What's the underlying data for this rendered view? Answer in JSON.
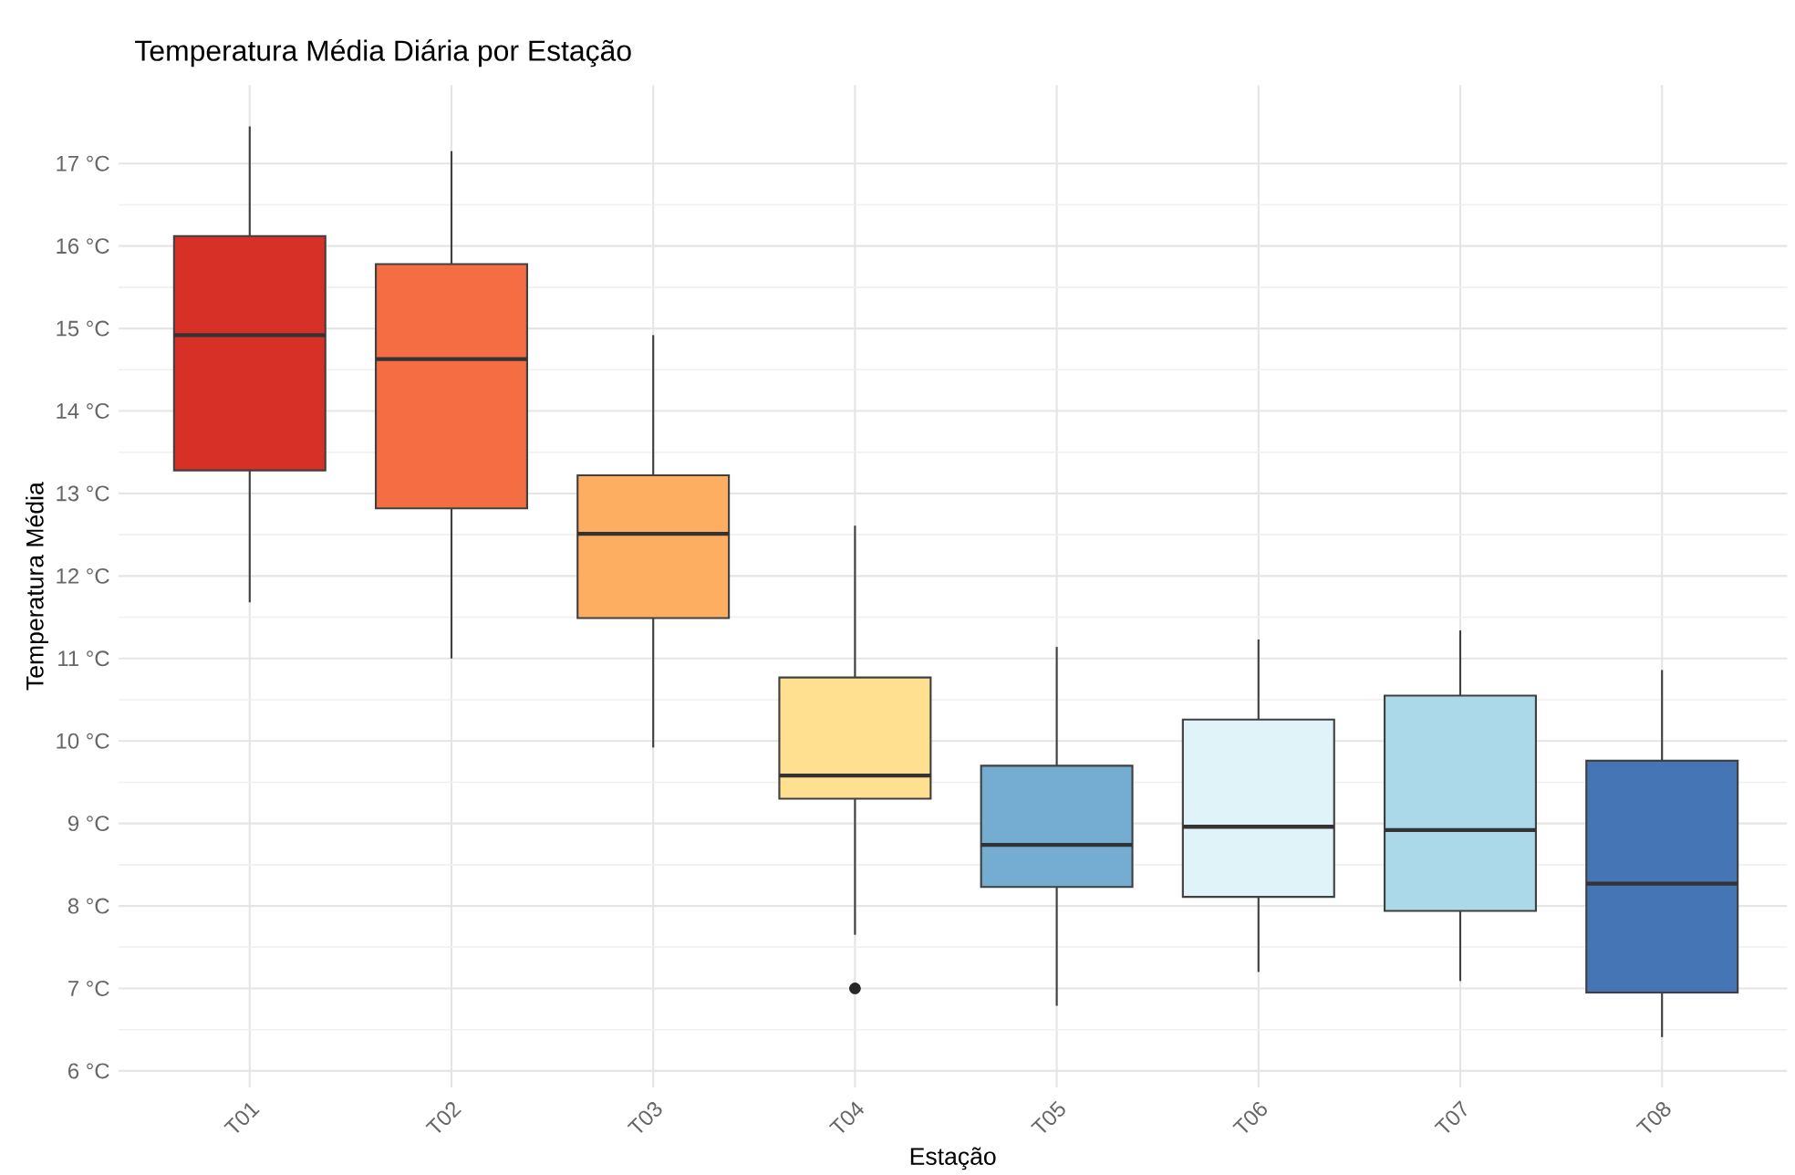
{
  "chart_data": {
    "type": "box",
    "title": "Temperatura Média Diária por Estação",
    "xlabel": "Estação",
    "ylabel": "Temperatura Média",
    "categories": [
      "T01",
      "T02",
      "T03",
      "T04",
      "T05",
      "T06",
      "T07",
      "T08"
    ],
    "colors": [
      "#d73027",
      "#f46d43",
      "#fdae61",
      "#fee090",
      "#74add1",
      "#e0f3f8",
      "#abd9e9",
      "#4575b4"
    ],
    "boxes": [
      {
        "low": 11.68,
        "q1": 13.28,
        "median": 14.92,
        "q3": 16.12,
        "high": 17.45
      },
      {
        "low": 11.0,
        "q1": 12.82,
        "median": 14.63,
        "q3": 15.78,
        "high": 17.15
      },
      {
        "low": 9.92,
        "q1": 11.49,
        "median": 12.51,
        "q3": 13.22,
        "high": 14.92
      },
      {
        "low": 7.65,
        "q1": 9.3,
        "median": 9.58,
        "q3": 10.77,
        "high": 12.61,
        "outliers": [
          7.0
        ]
      },
      {
        "low": 6.79,
        "q1": 8.23,
        "median": 8.74,
        "q3": 9.7,
        "high": 11.14
      },
      {
        "low": 7.2,
        "q1": 8.11,
        "median": 8.96,
        "q3": 10.26,
        "high": 11.23
      },
      {
        "low": 7.09,
        "q1": 7.94,
        "median": 8.92,
        "q3": 10.55,
        "high": 11.34
      },
      {
        "low": 6.41,
        "q1": 6.95,
        "median": 8.27,
        "q3": 9.76,
        "high": 10.86
      }
    ],
    "ylim": [
      5.8,
      17.95
    ],
    "yticks": [
      {
        "value": 6,
        "label": "6 °C"
      },
      {
        "value": 7,
        "label": "7 °C"
      },
      {
        "value": 8,
        "label": "8 °C"
      },
      {
        "value": 9,
        "label": "9 °C"
      },
      {
        "value": 10,
        "label": "10 °C"
      },
      {
        "value": 11,
        "label": "11 °C"
      },
      {
        "value": 12,
        "label": "12 °C"
      },
      {
        "value": 13,
        "label": "13 °C"
      },
      {
        "value": 14,
        "label": "14 °C"
      },
      {
        "value": 15,
        "label": "15 °C"
      },
      {
        "value": 16,
        "label": "16 °C"
      },
      {
        "value": 17,
        "label": "17 °C"
      }
    ],
    "grid": true
  }
}
